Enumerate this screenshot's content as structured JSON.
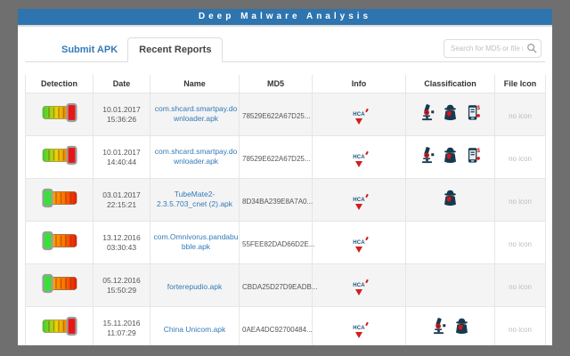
{
  "window": {
    "title": "Deep Malware Analysis"
  },
  "tabs": [
    {
      "label": "Submit APK",
      "active": false
    },
    {
      "label": "Recent Reports",
      "active": true
    }
  ],
  "search": {
    "placeholder": "Search for MD5 or file name"
  },
  "table": {
    "columns": [
      "Detection",
      "Date",
      "Name",
      "MD5",
      "Info",
      "Classification",
      "File Icon"
    ],
    "rows": [
      {
        "detection": "high",
        "date": "10.01.2017",
        "time": "15:36:26",
        "name": "com.shcard.smartpay.downloader.apk",
        "md5": "78529E622A67D25...",
        "info_label": "HCA",
        "classification_icons": [
          "microscope",
          "spy",
          "phone-sms"
        ],
        "file_icon": "no icon"
      },
      {
        "detection": "high",
        "date": "10.01.2017",
        "time": "14:40:44",
        "name": "com.shcard.smartpay.downloader.apk",
        "md5": "78529E622A67D25...",
        "info_label": "HCA",
        "classification_icons": [
          "microscope",
          "spy",
          "phone-sms"
        ],
        "file_icon": "no icon"
      },
      {
        "detection": "low",
        "date": "03.01.2017",
        "time": "22:15:21",
        "name": "TubeMate2-2.3.5.703_cnet (2).apk",
        "md5": "8D34BA239E8A7A0...",
        "info_label": "HCA",
        "classification_icons": [
          "spy"
        ],
        "file_icon": "no icon"
      },
      {
        "detection": "low",
        "date": "13.12.2016",
        "time": "03:30:43",
        "name": "com.Omnivorus.pandabubble.apk",
        "md5": "55FEE82DAD66D2E...",
        "info_label": "HCA",
        "classification_icons": [],
        "file_icon": "no icon"
      },
      {
        "detection": "low",
        "date": "05.12.2016",
        "time": "15:50:29",
        "name": "forterepudio.apk",
        "md5": "CBDA25D27D9EADB...",
        "info_label": "HCA",
        "classification_icons": [],
        "file_icon": "no icon"
      },
      {
        "detection": "high",
        "date": "15.11.2016",
        "time": "11:07:29",
        "name": "China Unicom.apk",
        "md5": "0AEA4DC92700484...",
        "info_label": "HCA",
        "classification_icons": [
          "microscope",
          "spy"
        ],
        "file_icon": "no icon"
      }
    ]
  },
  "colors": {
    "header_blue": "#2e74ae",
    "frame_gray": "#6f6f6f",
    "link_blue": "#337ab7",
    "meter_green": "#35d435",
    "meter_red": "#e61717",
    "icon_navy": "#16394f",
    "icon_red": "#cf1717"
  }
}
